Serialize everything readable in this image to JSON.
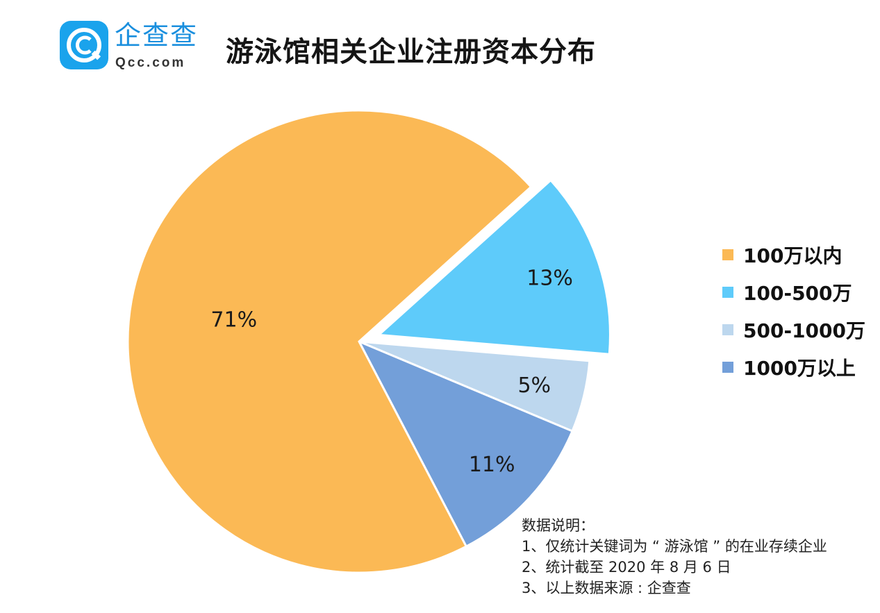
{
  "header": {
    "logo_cn": "企查查",
    "logo_en": "Qcc.com",
    "title": "游泳馆相关企业注册资本分布"
  },
  "chart_data": {
    "type": "pie",
    "title": "游泳馆相关企业注册资本分布",
    "categories": [
      "100万以内",
      "100-500万",
      "500-1000万",
      "1000万以上"
    ],
    "values": [
      71,
      13,
      5,
      11
    ],
    "labels": [
      "71%",
      "13%",
      "5%",
      "11%"
    ],
    "colors": [
      "#fbb955",
      "#5ecbfa",
      "#bdd7ee",
      "#739fd9"
    ],
    "exploded": [
      false,
      true,
      false,
      false
    ],
    "legend_position": "right"
  },
  "notes": {
    "heading": "数据说明：",
    "lines": [
      "1、仅统计关键词为 “ 游泳馆 ” 的在业存续企业",
      "2、统计截至 2020 年 8 月 6 日",
      "3、以上数据来源 : 企查查"
    ]
  }
}
